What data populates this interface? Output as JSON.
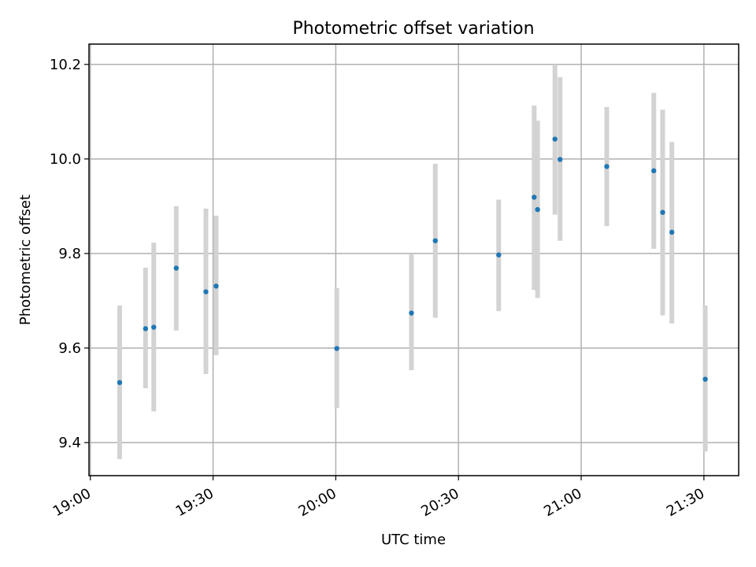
{
  "chart_data": {
    "type": "scatter",
    "title": "Photometric offset variation",
    "xlabel": "UTC time",
    "ylabel": "Photometric offset",
    "x_tick_labels": [
      "19:00",
      "19:30",
      "20:00",
      "20:30",
      "21:00",
      "21:30"
    ],
    "y_tick_labels": [
      "9.4",
      "9.6",
      "9.8",
      "10.0",
      "10.2"
    ],
    "y_ticks": [
      9.4,
      9.6,
      9.8,
      10.0,
      10.2
    ],
    "xlim": [
      "18:59:40",
      "21:38:30"
    ],
    "ylim": [
      9.33,
      10.243
    ],
    "grid": true,
    "colors": {
      "marker": "#1f77b4",
      "errorbar": "#d3d3d3",
      "grid": "#b0b0b0"
    },
    "series": [
      {
        "points": [
          {
            "time": "19:07:10",
            "y": 9.527,
            "err_low": 9.365,
            "err_high": 9.69
          },
          {
            "time": "19:13:30",
            "y": 9.641,
            "err_low": 9.515,
            "err_high": 9.77
          },
          {
            "time": "19:15:30",
            "y": 9.644,
            "err_low": 9.466,
            "err_high": 9.823
          },
          {
            "time": "19:21:00",
            "y": 9.769,
            "err_low": 9.637,
            "err_high": 9.9
          },
          {
            "time": "19:28:15",
            "y": 9.719,
            "err_low": 9.545,
            "err_high": 9.895
          },
          {
            "time": "19:30:45",
            "y": 9.731,
            "err_low": 9.585,
            "err_high": 9.88
          },
          {
            "time": "20:00:15",
            "y": 9.599,
            "err_low": 9.473,
            "err_high": 9.727
          },
          {
            "time": "20:18:30",
            "y": 9.674,
            "err_low": 9.553,
            "err_high": 9.798
          },
          {
            "time": "20:24:20",
            "y": 9.827,
            "err_low": 9.664,
            "err_high": 9.99
          },
          {
            "time": "20:39:50",
            "y": 9.797,
            "err_low": 9.678,
            "err_high": 9.914
          },
          {
            "time": "20:48:30",
            "y": 9.919,
            "err_low": 9.723,
            "err_high": 10.113
          },
          {
            "time": "20:49:20",
            "y": 9.893,
            "err_low": 9.706,
            "err_high": 10.081
          },
          {
            "time": "20:53:35",
            "y": 10.042,
            "err_low": 9.882,
            "err_high": 10.2
          },
          {
            "time": "20:54:50",
            "y": 9.999,
            "err_low": 9.827,
            "err_high": 10.173
          },
          {
            "time": "21:06:15",
            "y": 9.984,
            "err_low": 9.858,
            "err_high": 10.11
          },
          {
            "time": "21:17:45",
            "y": 9.975,
            "err_low": 9.81,
            "err_high": 10.14
          },
          {
            "time": "21:19:55",
            "y": 9.887,
            "err_low": 9.669,
            "err_high": 10.104
          },
          {
            "time": "21:22:10",
            "y": 9.845,
            "err_low": 9.652,
            "err_high": 10.036
          },
          {
            "time": "21:30:20",
            "y": 9.534,
            "err_low": 9.381,
            "err_high": 9.69
          }
        ]
      }
    ]
  }
}
